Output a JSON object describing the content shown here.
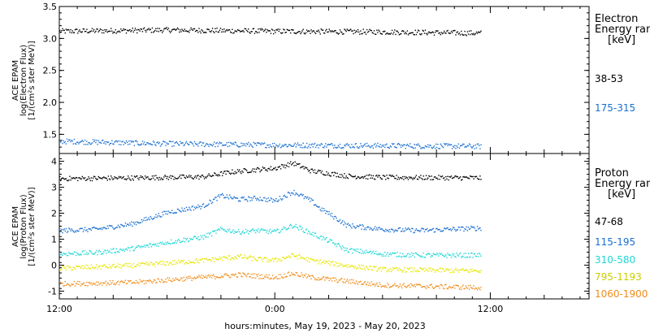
{
  "chart_data": {
    "type": "scatter",
    "xlabel": "hours:minutes, May 19, 2023 - May 20, 2023",
    "x_ticks": [
      "12:00",
      "0:00",
      "12:00"
    ],
    "x_range_hours": [
      -12,
      17.5
    ],
    "data_end_hours": 11.5,
    "panels": [
      {
        "id": "electron",
        "ylabel_lines": [
          "ACE EPAM",
          "log(Electron Flux)",
          "[1/(cm²s ster MeV)]"
        ],
        "ylim": [
          1.2,
          3.5
        ],
        "y_ticks": [
          "3.5",
          "3.0",
          "2.5",
          "2.0",
          "1.5"
        ],
        "y_tick_values": [
          3.5,
          3.0,
          2.5,
          2.0,
          1.5
        ],
        "legend_title": [
          "Electron",
          "Energy ran",
          "[keV]"
        ],
        "series": [
          {
            "name": "38-53",
            "color": "#000000",
            "x": [
              -12,
              -6,
              0,
              6,
              11.5
            ],
            "y": [
              3.12,
              3.14,
              3.12,
              3.11,
              3.09
            ]
          },
          {
            "name": "175-315",
            "color": "#1a6fd1",
            "x": [
              -12,
              -6,
              0,
              6,
              11.5
            ],
            "y": [
              1.4,
              1.36,
              1.34,
              1.33,
              1.32
            ]
          }
        ]
      },
      {
        "id": "proton",
        "ylabel_lines": [
          "ACE EPAM",
          "log(Proton Flux)",
          "[1/(cm²s ster MeV)]"
        ],
        "ylim": [
          -1.3,
          4.3
        ],
        "y_ticks": [
          "4",
          "3",
          "2",
          "1",
          "0",
          "-1"
        ],
        "y_tick_values": [
          4,
          3,
          2,
          1,
          0,
          -1
        ],
        "legend_title": [
          "Proton",
          "Energy ran",
          "[keV]"
        ],
        "series": [
          {
            "name": "47-68",
            "color": "#000000",
            "x": [
              -12,
              -8,
              -4,
              -2.5,
              -1,
              0,
              1,
              2,
              3,
              4,
              6,
              11.5
            ],
            "y": [
              3.35,
              3.38,
              3.42,
              3.6,
              3.7,
              3.75,
              3.95,
              3.65,
              3.55,
              3.45,
              3.4,
              3.38
            ]
          },
          {
            "name": "115-195",
            "color": "#1a6fd1",
            "x": [
              -12,
              -10,
              -8,
              -6,
              -4,
              -3,
              -2,
              -1,
              0,
              1,
              2,
              2.5,
              3,
              4,
              6,
              8,
              11.5
            ],
            "y": [
              1.35,
              1.4,
              1.6,
              2.05,
              2.3,
              2.7,
              2.55,
              2.6,
              2.5,
              2.85,
              2.5,
              2.2,
              2.0,
              1.55,
              1.4,
              1.35,
              1.45
            ]
          },
          {
            "name": "310-580",
            "color": "#1fd6d6",
            "x": [
              -12,
              -10,
              -8,
              -6,
              -4,
              -3,
              -2,
              -1,
              0,
              1,
              2,
              3,
              4,
              6,
              8,
              11.5
            ],
            "y": [
              0.45,
              0.5,
              0.65,
              0.9,
              1.1,
              1.4,
              1.3,
              1.35,
              1.3,
              1.55,
              1.25,
              0.95,
              0.6,
              0.45,
              0.4,
              0.4
            ]
          },
          {
            "name": "795-1193",
            "color": "#e6e600",
            "x": [
              -12,
              -8,
              -6,
              -4,
              -2,
              -1,
              0,
              1,
              2,
              4,
              6,
              11.5
            ],
            "y": [
              -0.1,
              0.0,
              0.1,
              0.2,
              0.35,
              0.25,
              0.2,
              0.4,
              0.2,
              0.0,
              -0.15,
              -0.2
            ]
          },
          {
            "name": "1060-1900",
            "color": "#f08c1a",
            "x": [
              -12,
              -8,
              -6,
              -4,
              -2,
              -1,
              0,
              1,
              2,
              4,
              6,
              11.5
            ],
            "y": [
              -0.7,
              -0.65,
              -0.55,
              -0.45,
              -0.35,
              -0.4,
              -0.45,
              -0.3,
              -0.45,
              -0.6,
              -0.75,
              -0.85
            ]
          }
        ]
      }
    ]
  }
}
